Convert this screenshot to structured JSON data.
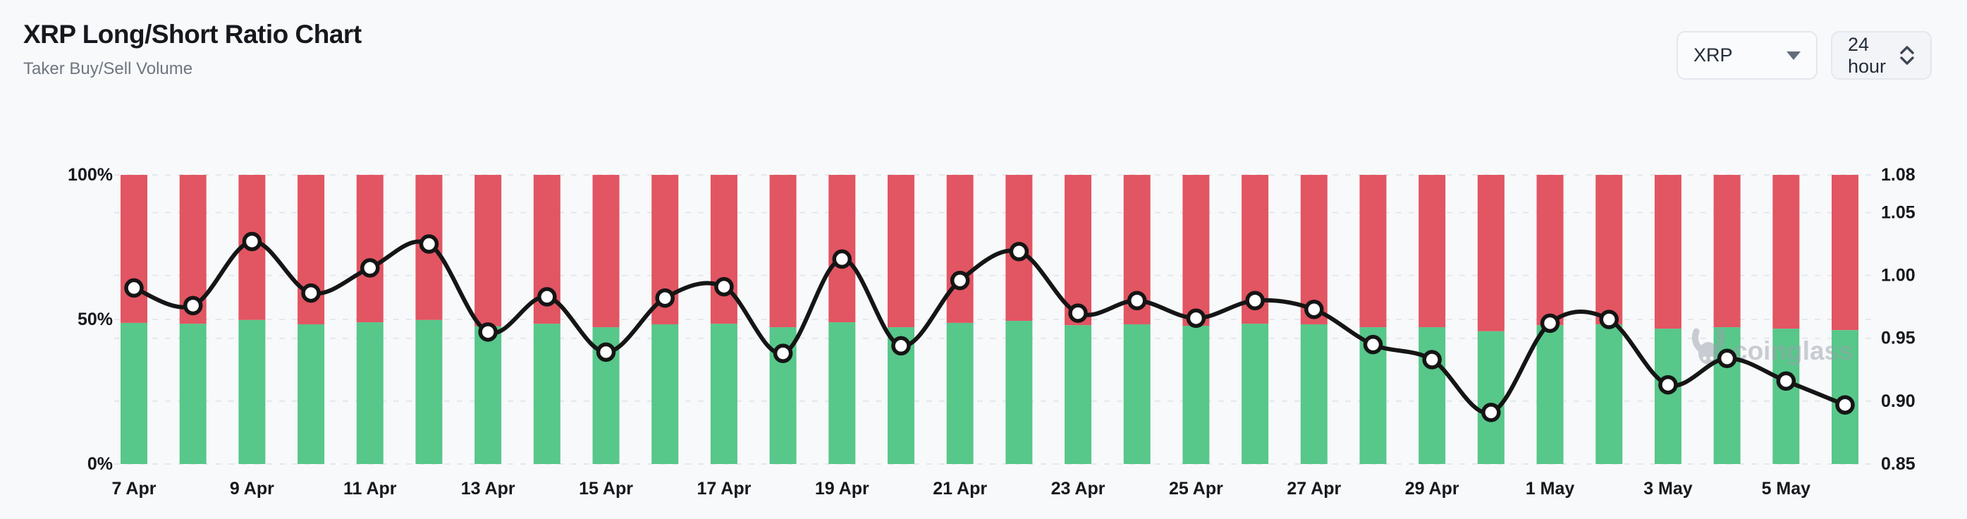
{
  "header": {
    "title": "XRP Long/Short Ratio Chart",
    "subtitle": "Taker Buy/Sell Volume"
  },
  "controls": {
    "symbol_select": {
      "value": "XRP"
    },
    "interval_select": {
      "value": "24 hour"
    }
  },
  "watermark": {
    "text": "coinglass"
  },
  "chart_data": {
    "type": "bar",
    "subtype": "stacked-percent-bars-with-line-overlay",
    "title": "XRP Long/Short Ratio Chart",
    "subtitle": "Taker Buy/Sell Volume",
    "categories": [
      "7 Apr",
      "8 Apr",
      "9 Apr",
      "10 Apr",
      "11 Apr",
      "12 Apr",
      "13 Apr",
      "14 Apr",
      "15 Apr",
      "16 Apr",
      "17 Apr",
      "18 Apr",
      "19 Apr",
      "20 Apr",
      "21 Apr",
      "22 Apr",
      "23 Apr",
      "24 Apr",
      "25 Apr",
      "26 Apr",
      "27 Apr",
      "28 Apr",
      "29 Apr",
      "30 Apr",
      "1 May",
      "2 May",
      "3 May",
      "4 May",
      "5 May",
      "6 May"
    ],
    "x_tick_labels": [
      "7 Apr",
      "9 Apr",
      "11 Apr",
      "13 Apr",
      "15 Apr",
      "17 Apr",
      "19 Apr",
      "21 Apr",
      "23 Apr",
      "25 Apr",
      "27 Apr",
      "29 Apr",
      "1 May",
      "3 May",
      "5 May"
    ],
    "x_tick_every": 2,
    "series": [
      {
        "name": "Taker Buy Volume %",
        "kind": "bar-bottom",
        "color": "#57c78a",
        "values": [
          48.8,
          48.5,
          49.8,
          48.3,
          49.0,
          49.8,
          47.6,
          48.5,
          47.3,
          48.3,
          48.5,
          47.3,
          49.0,
          47.3,
          48.8,
          49.5,
          48.0,
          48.3,
          47.8,
          48.5,
          48.3,
          47.3,
          47.3,
          45.9,
          48.0,
          48.3,
          46.8,
          47.3,
          46.8,
          46.3
        ]
      },
      {
        "name": "Taker Sell Volume %",
        "kind": "bar-top",
        "color": "#e25562",
        "values": [
          51.2,
          51.5,
          50.2,
          51.7,
          51.0,
          50.2,
          52.4,
          51.5,
          52.7,
          51.7,
          51.5,
          52.7,
          51.0,
          52.7,
          51.2,
          50.5,
          52.0,
          51.7,
          52.2,
          51.5,
          51.7,
          52.7,
          52.7,
          54.1,
          52.0,
          51.7,
          53.2,
          52.7,
          53.2,
          53.7
        ]
      },
      {
        "name": "Buy/Sell Ratio",
        "kind": "line",
        "color": "#151515",
        "marker": {
          "fill": "#ffffff",
          "stroke": "#151515"
        },
        "values": [
          0.99,
          0.976,
          1.027,
          0.986,
          1.006,
          1.025,
          0.955,
          0.983,
          0.939,
          0.982,
          0.991,
          0.938,
          1.013,
          0.944,
          0.996,
          1.019,
          0.97,
          0.98,
          0.966,
          0.98,
          0.973,
          0.945,
          0.933,
          0.891,
          0.962,
          0.965,
          0.913,
          0.934,
          0.916,
          0.897
        ]
      }
    ],
    "left_axis": {
      "ticks": [
        "100%",
        "50%",
        "0%"
      ],
      "tick_values": [
        100,
        50,
        0
      ],
      "range": [
        0,
        100
      ]
    },
    "right_axis": {
      "ticks": [
        "1.08",
        "1.05",
        "1.00",
        "0.95",
        "0.90",
        "0.85"
      ],
      "tick_values": [
        1.08,
        1.05,
        1.0,
        0.95,
        0.9,
        0.85
      ],
      "range": [
        0.85,
        1.08
      ]
    },
    "grid": "horizontal-dashed",
    "legend": "none",
    "colors": {
      "buy": "#57c78a",
      "sell": "#e25562",
      "line": "#151515",
      "grid": "#e4e7ec",
      "axis_text": "#15181d"
    }
  }
}
